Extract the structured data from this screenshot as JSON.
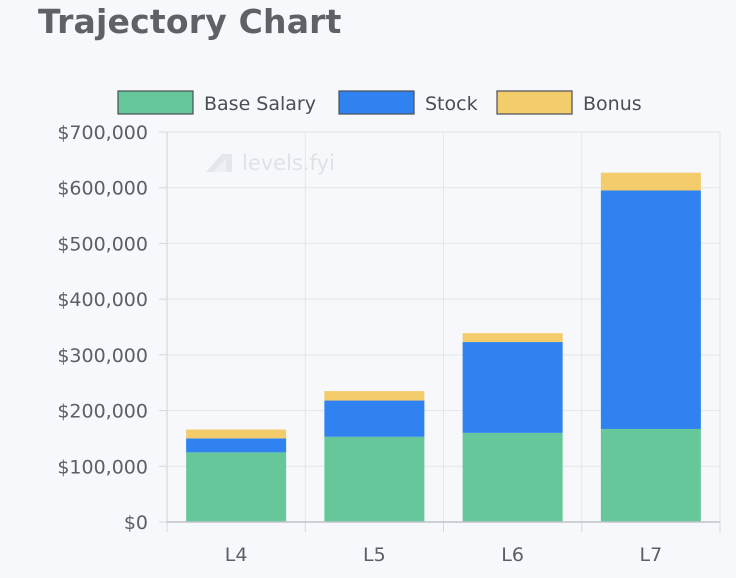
{
  "title": "Trajectory Chart",
  "watermark": "levels.fyi",
  "chart_data": {
    "type": "bar",
    "stacked": true,
    "title": "Trajectory Chart",
    "categories": [
      "L4",
      "L5",
      "L6",
      "L7"
    ],
    "series": [
      {
        "name": "Base Salary",
        "color": "#66c89a",
        "values": [
          125000,
          153000,
          160000,
          167000
        ]
      },
      {
        "name": "Stock",
        "color": "#2f82f0",
        "values": [
          25000,
          65000,
          163000,
          428000
        ]
      },
      {
        "name": "Bonus",
        "color": "#f3cc6c",
        "values": [
          16000,
          17000,
          16000,
          32000
        ]
      }
    ],
    "y_ticks": [
      "$0",
      "$100,000",
      "$200,000",
      "$300,000",
      "$400,000",
      "$500,000",
      "$600,000",
      "$700,000"
    ],
    "ylim": [
      0,
      700000
    ],
    "xlabel": "",
    "ylabel": "",
    "grid": true,
    "legend_position": "top"
  }
}
